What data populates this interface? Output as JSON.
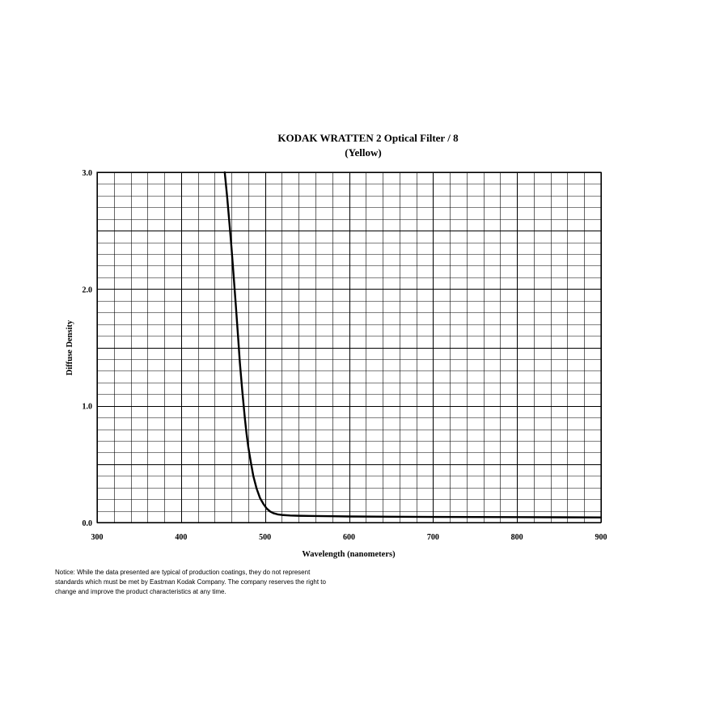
{
  "chart_data": {
    "type": "line",
    "title": "KODAK WRATTEN 2 Optical Filter / 8",
    "subtitle": "(Yellow)",
    "xlabel": "Wavelength (nanometers)",
    "ylabel": "Diffuse Density",
    "xlim": [
      300,
      900
    ],
    "ylim": [
      0.0,
      3.0
    ],
    "x_ticks": [
      "300",
      "400",
      "500",
      "600",
      "700",
      "800",
      "900"
    ],
    "y_ticks": [
      "0.0",
      "1.0",
      "2.0",
      "3.0"
    ],
    "x_minor_step": 20,
    "y_minor_step": 0.1,
    "grid": true,
    "series": [
      {
        "color": "#000000",
        "x": [
          452,
          455,
          458,
          460,
          462,
          465,
          468,
          470,
          473,
          476,
          478,
          480,
          483,
          486,
          490,
          494,
          498,
          502,
          506,
          510,
          515,
          520,
          530,
          540,
          560,
          580,
          600,
          650,
          700,
          750,
          800,
          850,
          900
        ],
        "y": [
          3.0,
          2.78,
          2.53,
          2.36,
          2.17,
          1.88,
          1.58,
          1.37,
          1.12,
          0.89,
          0.76,
          0.65,
          0.52,
          0.4,
          0.29,
          0.21,
          0.16,
          0.12,
          0.095,
          0.08,
          0.07,
          0.065,
          0.06,
          0.058,
          0.056,
          0.054,
          0.052,
          0.05,
          0.048,
          0.047,
          0.046,
          0.045,
          0.044
        ]
      }
    ]
  },
  "notice": {
    "line1": "Notice: While the data presented are typical of production coatings, they do not represent",
    "line2": "standards which must be met by Eastman Kodak Company.  The company reserves the right to",
    "line3": "change and improve the product characteristics at any time."
  }
}
